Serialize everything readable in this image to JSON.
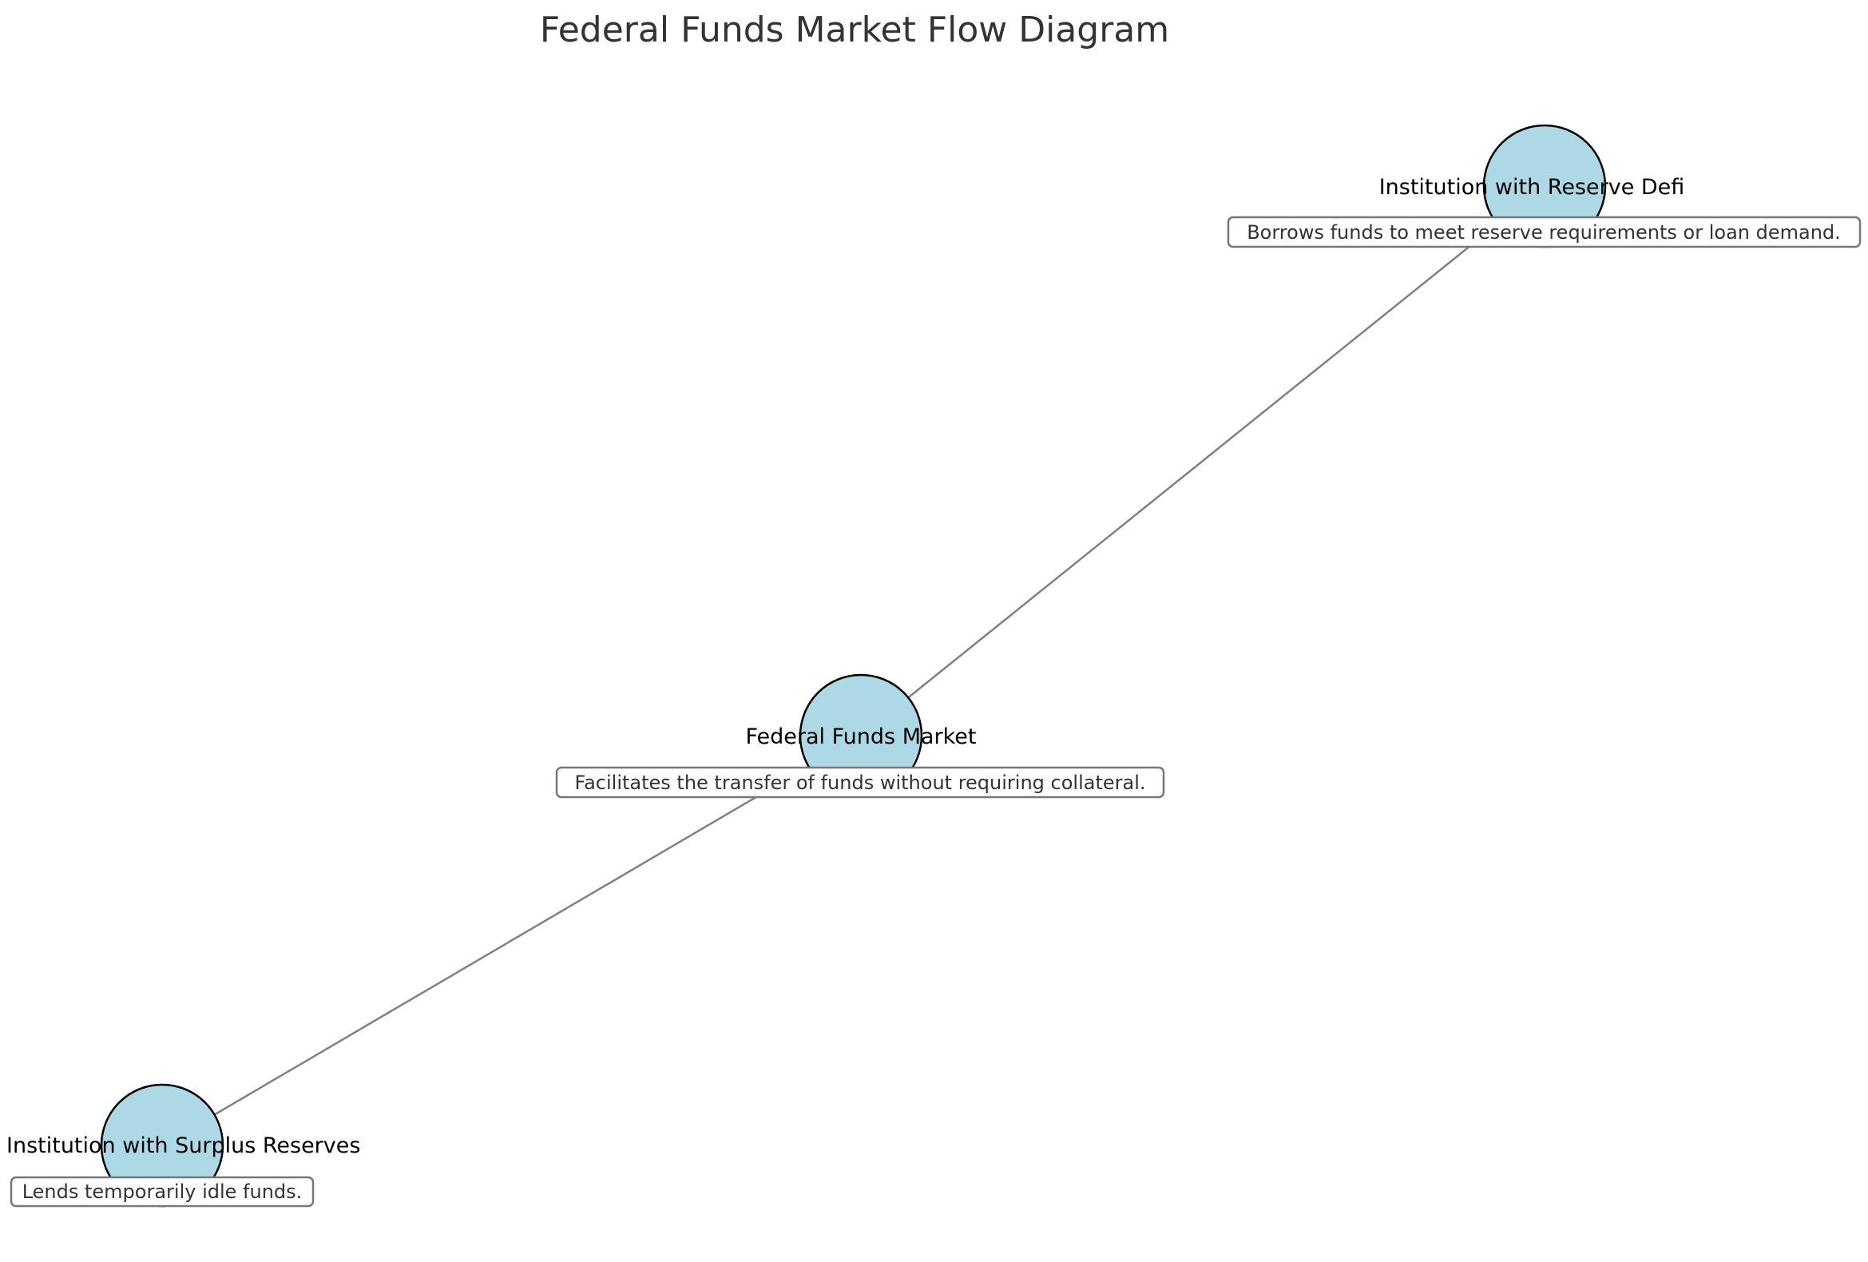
{
  "diagram": {
    "title": "Federal Funds Market Flow Diagram",
    "colors": {
      "node_fill": "#add8e6",
      "node_stroke": "#000000",
      "edge": "#808080",
      "box_stroke": "#777777",
      "title": "#333333"
    },
    "nodes": [
      {
        "id": "deficit",
        "label": "Institution with Reserve Defi",
        "description": "Borrows funds to meet reserve requirements or loan demand."
      },
      {
        "id": "market",
        "label": "Federal Funds Market",
        "description": "Facilitates the transfer of funds without requiring collateral."
      },
      {
        "id": "surplus",
        "label": "Institution with Surplus Reserves",
        "description": "Lends temporarily idle funds."
      }
    ],
    "edges": [
      {
        "from": "market",
        "to": "deficit"
      },
      {
        "from": "surplus",
        "to": "market"
      }
    ]
  }
}
